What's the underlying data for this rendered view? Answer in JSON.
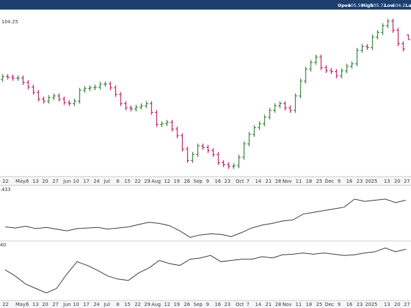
{
  "header": {
    "labels": [
      "Open",
      "High",
      "Low",
      "Last"
    ]
  },
  "chart_data": [
    {
      "type": "ohlc",
      "up_color": "#2e7d32",
      "down_color": "#c2185b",
      "ylim": [
        66,
        112
      ],
      "open": [
        93.0,
        93.8,
        93.6,
        93.3,
        93.4,
        92.1,
        90.8,
        89.3,
        87.4,
        86.8,
        87.8,
        88.3,
        87.4,
        86.4,
        86.1,
        86.8,
        89.9,
        90.4,
        90.6,
        90.8,
        91.6,
        91.7,
        90.6,
        88.7,
        86.1,
        84.9,
        84.6,
        85.1,
        85.5,
        86.1,
        83.6,
        80.2,
        80.4,
        80.8,
        78.9,
        77.0,
        73.2,
        70.0,
        71.7,
        74.1,
        73.7,
        72.8,
        71.7,
        69.4,
        68.8,
        68.3,
        68.5,
        70.9,
        74.7,
        77.4,
        79.3,
        80.4,
        82.3,
        84.2,
        85.5,
        86.1,
        84.9,
        84.2,
        88.3,
        92.5,
        95.9,
        97.8,
        99.3,
        96.3,
        95.5,
        95.2,
        94.0,
        95.4,
        96.7,
        97.4,
        101.2,
        102.3,
        102.0,
        105.0,
        106.3,
        108.2,
        109.5,
        106.9,
        103.1,
        105.58
      ],
      "high": [
        94.5,
        94.5,
        94.3,
        94.1,
        94.1,
        92.8,
        91.5,
        90.0,
        88.1,
        88.5,
        89.0,
        89.0,
        88.1,
        87.1,
        87.5,
        90.6,
        91.1,
        91.3,
        91.5,
        92.3,
        92.4,
        92.4,
        91.3,
        89.4,
        86.8,
        85.6,
        85.8,
        86.2,
        86.8,
        86.8,
        84.3,
        81.1,
        81.5,
        81.5,
        79.6,
        77.7,
        73.9,
        72.4,
        74.8,
        74.8,
        74.4,
        73.5,
        72.4,
        70.1,
        69.5,
        69.2,
        71.6,
        75.4,
        78.1,
        80.0,
        81.1,
        83.0,
        84.9,
        86.2,
        86.8,
        86.8,
        85.6,
        89.0,
        93.2,
        96.6,
        98.5,
        100.0,
        100.0,
        97.0,
        96.2,
        95.9,
        96.1,
        97.4,
        98.1,
        101.9,
        103.0,
        103.0,
        105.7,
        107.0,
        108.9,
        110.2,
        110.2,
        107.6,
        103.8,
        105.72
      ],
      "low": [
        92.3,
        92.9,
        92.6,
        92.6,
        91.4,
        90.1,
        88.6,
        86.7,
        86.1,
        86.1,
        87.1,
        86.7,
        85.7,
        85.4,
        85.4,
        86.1,
        89.2,
        89.7,
        89.9,
        90.1,
        90.9,
        89.9,
        88.0,
        85.4,
        84.2,
        83.9,
        83.9,
        84.4,
        84.8,
        82.9,
        79.5,
        79.5,
        79.7,
        78.2,
        76.3,
        72.5,
        69.3,
        69.3,
        71.0,
        73.0,
        72.1,
        71.0,
        68.7,
        68.1,
        67.6,
        67.6,
        67.8,
        70.2,
        74.0,
        76.7,
        78.6,
        79.7,
        81.6,
        83.5,
        84.8,
        84.2,
        83.5,
        83.5,
        87.6,
        91.8,
        95.2,
        97.1,
        95.6,
        94.8,
        94.5,
        93.3,
        93.3,
        94.7,
        96.0,
        96.7,
        100.5,
        101.3,
        101.3,
        104.3,
        105.6,
        107.5,
        106.2,
        102.4,
        100.9,
        104.2
      ],
      "close": [
        93.8,
        93.6,
        93.3,
        93.4,
        92.1,
        90.8,
        89.3,
        87.4,
        86.8,
        87.8,
        88.3,
        87.4,
        86.4,
        86.1,
        86.8,
        89.9,
        90.4,
        90.6,
        90.8,
        91.6,
        91.7,
        90.6,
        88.7,
        86.1,
        84.9,
        84.6,
        85.1,
        85.5,
        86.1,
        83.6,
        80.2,
        80.4,
        80.8,
        78.9,
        77.0,
        73.2,
        70.0,
        71.7,
        74.1,
        73.7,
        72.8,
        71.7,
        69.4,
        68.8,
        68.3,
        68.5,
        70.9,
        74.7,
        77.4,
        79.3,
        80.4,
        82.3,
        84.2,
        85.5,
        86.1,
        84.9,
        84.2,
        88.3,
        92.5,
        95.9,
        97.8,
        99.3,
        96.3,
        95.5,
        95.2,
        94.0,
        95.4,
        96.7,
        97.4,
        101.2,
        102.3,
        102.0,
        105.0,
        106.3,
        108.2,
        109.5,
        106.9,
        103.1,
        101.6,
        104.25
      ],
      "xtick_labels": [
        "22",
        "May",
        "6",
        "13",
        "20",
        "27",
        "Jun",
        "10",
        "17",
        "24",
        "Jul",
        "8",
        "15",
        "22",
        "29",
        "Aug",
        "12",
        "19",
        "26",
        "Sep",
        "9",
        "16",
        "23",
        "Oct",
        "7",
        "14",
        "21",
        "28",
        "Nov",
        "11",
        "18",
        "25",
        "Dec",
        "9",
        "16",
        "23",
        "2025",
        "13",
        "20",
        "27"
      ]
    },
    {
      "type": "line",
      "label": ".433",
      "color": "#333333",
      "ylim": [
        0,
        100
      ],
      "values": [
        24.4,
        22.2,
        25.6,
        21.1,
        23.3,
        20.0,
        16.7,
        21.1,
        22.2,
        23.3,
        20.0,
        22.2,
        24.4,
        28.9,
        33.3,
        31.1,
        26.7,
        16.7,
        4.4,
        8.9,
        11.1,
        10.0,
        5.6,
        13.3,
        22.2,
        27.8,
        31.1,
        35.6,
        37.8,
        48.9,
        52.2,
        55.6,
        58.9,
        62.2,
        77.8,
        73.3,
        75.6,
        77.8,
        71.1,
        75.6
      ]
    },
    {
      "type": "line",
      "label": "40",
      "color": "#333333",
      "ylim": [
        0,
        100
      ],
      "values": [
        52.2,
        41.1,
        26.7,
        18.9,
        11.1,
        18.9,
        44.4,
        66.7,
        60.0,
        51.1,
        41.1,
        35.6,
        33.3,
        46.7,
        55.6,
        68.9,
        63.3,
        60.0,
        71.1,
        73.3,
        77.8,
        66.7,
        68.9,
        71.1,
        71.1,
        75.6,
        73.3,
        78.9,
        80.0,
        82.2,
        80.0,
        82.2,
        80.0,
        77.8,
        78.9,
        82.2,
        84.4,
        91.1,
        84.4,
        88.9
      ]
    }
  ]
}
